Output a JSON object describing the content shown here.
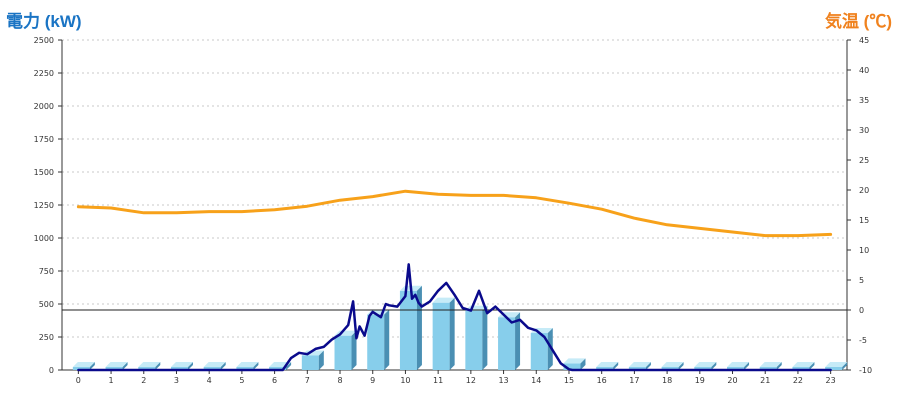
{
  "chart_data": {
    "type": "bar",
    "title_left": "電力 (kW)",
    "title_right": "気温 (℃)",
    "categories": [
      "0",
      "1",
      "2",
      "3",
      "4",
      "5",
      "6",
      "7",
      "8",
      "9",
      "10",
      "11",
      "12",
      "13",
      "14",
      "15",
      "16",
      "17",
      "18",
      "19",
      "20",
      "21",
      "22",
      "23"
    ],
    "yticks_left": [
      "0",
      "250",
      "500",
      "750",
      "1000",
      "1250",
      "1500",
      "1750",
      "2000",
      "2250",
      "2500"
    ],
    "yticks_right": [
      "-10",
      "-5",
      "0",
      "5",
      "10",
      "15",
      "20",
      "25",
      "30",
      "35",
      "40",
      "45"
    ],
    "ylim_left": [
      0,
      2500
    ],
    "ylim_right": [
      -10,
      45
    ],
    "grid": true,
    "series": [
      {
        "kind": "bar",
        "axis": "left",
        "color": "#87ceeb",
        "values": [
          0,
          0,
          0,
          0,
          0,
          0,
          0,
          110,
          260,
          420,
          600,
          510,
          450,
          400,
          280,
          50,
          0,
          0,
          0,
          0,
          0,
          0,
          0,
          0
        ]
      },
      {
        "kind": "line",
        "axis": "right",
        "color": "#f7a11a",
        "x": [
          0,
          1,
          2,
          3,
          4,
          5,
          6,
          7,
          8,
          9,
          10,
          11,
          12,
          13,
          14,
          15,
          16,
          17,
          18,
          19,
          20,
          21,
          22,
          23
        ],
        "values": [
          17.2,
          17.0,
          16.2,
          16.2,
          16.4,
          16.4,
          16.7,
          17.3,
          18.3,
          18.9,
          19.8,
          19.3,
          19.1,
          19.1,
          18.7,
          17.8,
          16.8,
          15.3,
          14.2,
          13.6,
          13.0,
          12.4,
          12.4,
          12.6
        ]
      },
      {
        "kind": "line",
        "axis": "left",
        "color": "#0a0a8c",
        "x": [
          0,
          1,
          2,
          3,
          4,
          5,
          6,
          6.25,
          6.5,
          6.75,
          7,
          7.25,
          7.5,
          7.75,
          8,
          8.25,
          8.4,
          8.5,
          8.6,
          8.75,
          8.9,
          9,
          9.25,
          9.4,
          9.5,
          9.75,
          10,
          10.1,
          10.2,
          10.3,
          10.4,
          10.5,
          10.75,
          11,
          11.25,
          11.5,
          11.75,
          12,
          12.25,
          12.5,
          12.75,
          13,
          13.25,
          13.5,
          13.75,
          14,
          14.25,
          14.5,
          14.75,
          15,
          15.1,
          15.25,
          16,
          17,
          18,
          19,
          20,
          21,
          22,
          23
        ],
        "values": [
          0,
          0,
          0,
          0,
          0,
          0,
          0,
          0,
          90,
          130,
          120,
          160,
          175,
          230,
          270,
          340,
          520,
          240,
          330,
          260,
          410,
          440,
          400,
          500,
          490,
          480,
          560,
          800,
          540,
          570,
          510,
          480,
          520,
          600,
          660,
          570,
          470,
          450,
          600,
          430,
          480,
          420,
          360,
          380,
          320,
          300,
          250,
          150,
          50,
          5,
          0,
          0,
          0,
          0,
          0,
          0,
          0,
          0,
          0,
          0
        ]
      }
    ],
    "reference_line": {
      "axis": "right",
      "value": 0
    }
  }
}
